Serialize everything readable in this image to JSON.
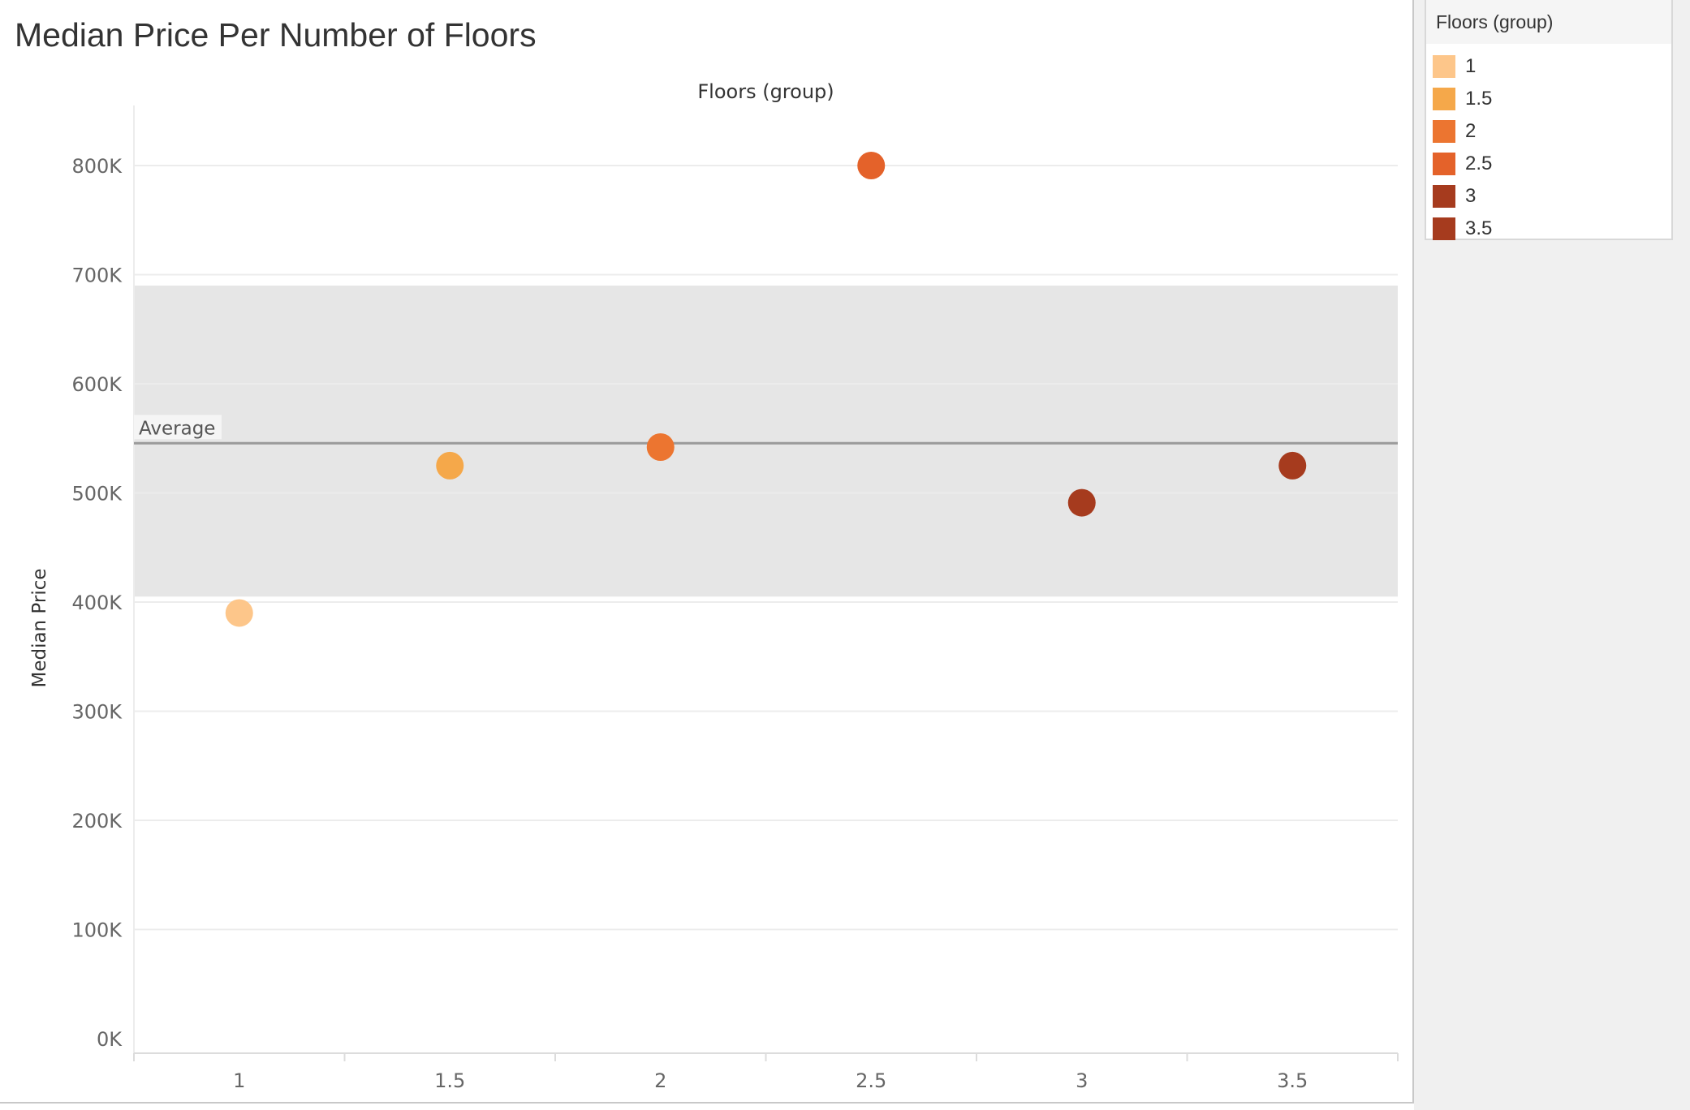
{
  "title": "Median Price Per Number of Floors",
  "chart_data": {
    "type": "scatter",
    "title": "Median Price Per Number of Floors",
    "column_header": "Floors (group)",
    "xlabel": "",
    "ylabel": "Median Price",
    "categories": [
      "1",
      "1.5",
      "2",
      "2.5",
      "3",
      "3.5"
    ],
    "values": [
      390000,
      525000,
      542000,
      800000,
      491000,
      525000
    ],
    "point_colors": [
      "#FDC68A",
      "#F5A84A",
      "#EC7530",
      "#E4622A",
      "#A63B1E",
      "#A63B1E"
    ],
    "ylim": [
      0,
      850000
    ],
    "yticks": [
      0,
      100000,
      200000,
      300000,
      400000,
      500000,
      600000,
      700000,
      800000
    ],
    "ytick_labels": [
      "0K",
      "100K",
      "200K",
      "300K",
      "400K",
      "500K",
      "600K",
      "700K",
      "800K"
    ],
    "grid": true,
    "reference_line": {
      "label": "Average",
      "value": 545500,
      "color": "#9a9a9a"
    },
    "reference_band": {
      "from": 405000,
      "to": 690000,
      "color": "#e6e6e6"
    },
    "legend": {
      "title": "Floors (group)",
      "placement": "right",
      "items": [
        {
          "label": "1",
          "color": "#FDC68A"
        },
        {
          "label": "1.5",
          "color": "#F5A84A"
        },
        {
          "label": "2",
          "color": "#EC7530"
        },
        {
          "label": "2.5",
          "color": "#E4622A"
        },
        {
          "label": "3",
          "color": "#A63B1E"
        },
        {
          "label": "3.5",
          "color": "#A63B1E"
        }
      ]
    }
  }
}
